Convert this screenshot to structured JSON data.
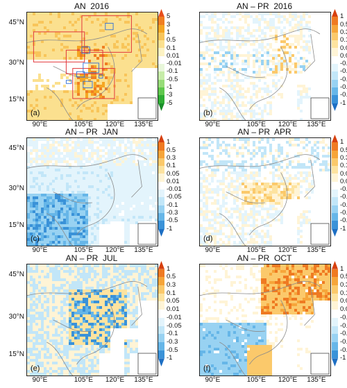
{
  "panels": [
    {
      "id": "a",
      "title": "AN  2016",
      "label": "(a)",
      "scale": "an",
      "yl": [
        "45°N",
        "30°N",
        "15°N"
      ],
      "xl": [
        "90°E",
        "105°E",
        "120°E",
        "135°E"
      ]
    },
    {
      "id": "b",
      "title": "AN – PR  2016",
      "label": "(b)",
      "scale": "diff",
      "yl": [],
      "xl": [
        "90°E",
        "105°E",
        "120°E",
        "135°E"
      ]
    },
    {
      "id": "c",
      "title": "AN – PR  JAN",
      "label": "(c)",
      "scale": "diff",
      "yl": [
        "45°N",
        "30°N",
        "15°N"
      ],
      "xl": [
        "90°E",
        "105°E",
        "120°E",
        "135°E"
      ]
    },
    {
      "id": "d",
      "title": "AN – PR  APR",
      "label": "(d)",
      "scale": "diff",
      "yl": [],
      "xl": [
        "90°E",
        "105°E",
        "120°E",
        "135°E"
      ]
    },
    {
      "id": "e",
      "title": "AN – PR  JUL",
      "label": "(e)",
      "scale": "diff",
      "yl": [
        "45°N",
        "30°N",
        "15°N"
      ],
      "xl": [
        "90°E",
        "105°E",
        "120°E",
        "135°E"
      ]
    },
    {
      "id": "f",
      "title": "AN – PR  OCT",
      "label": "(f)",
      "scale": "diff",
      "yl": [],
      "xl": [
        "90°E",
        "105°E",
        "120°E",
        "135°E"
      ]
    }
  ],
  "scales": {
    "an": {
      "ticks": [
        "5",
        "3",
        "1",
        "0.5",
        "0.1",
        "0.01",
        "-0.01",
        "-0.1",
        "-0.5",
        "-1",
        "-3",
        "-5"
      ],
      "colors": [
        "#e84e1b",
        "#f07f22",
        "#f5a623",
        "#f8c55a",
        "#fbe08f",
        "#fdf3c4",
        "#ffffff",
        "#e8f7da",
        "#c6eca8",
        "#97dc78",
        "#5fc84d",
        "#2fae34",
        "#1a8f2a"
      ]
    },
    "diff": {
      "ticks": [
        "1",
        "0.5",
        "0.3",
        "0.1",
        "0.05",
        "0.01",
        "-0.01",
        "-0.05",
        "-0.1",
        "-0.3",
        "-0.5",
        "-1"
      ],
      "colors": [
        "#d7400f",
        "#ef7a22",
        "#f6a53a",
        "#fbc96b",
        "#fde3a0",
        "#fff4d6",
        "#ffffff",
        "#e3f4fc",
        "#c2e6f8",
        "#98d2f2",
        "#66b6e8",
        "#3a92d8",
        "#1d6fc4"
      ]
    }
  }
}
